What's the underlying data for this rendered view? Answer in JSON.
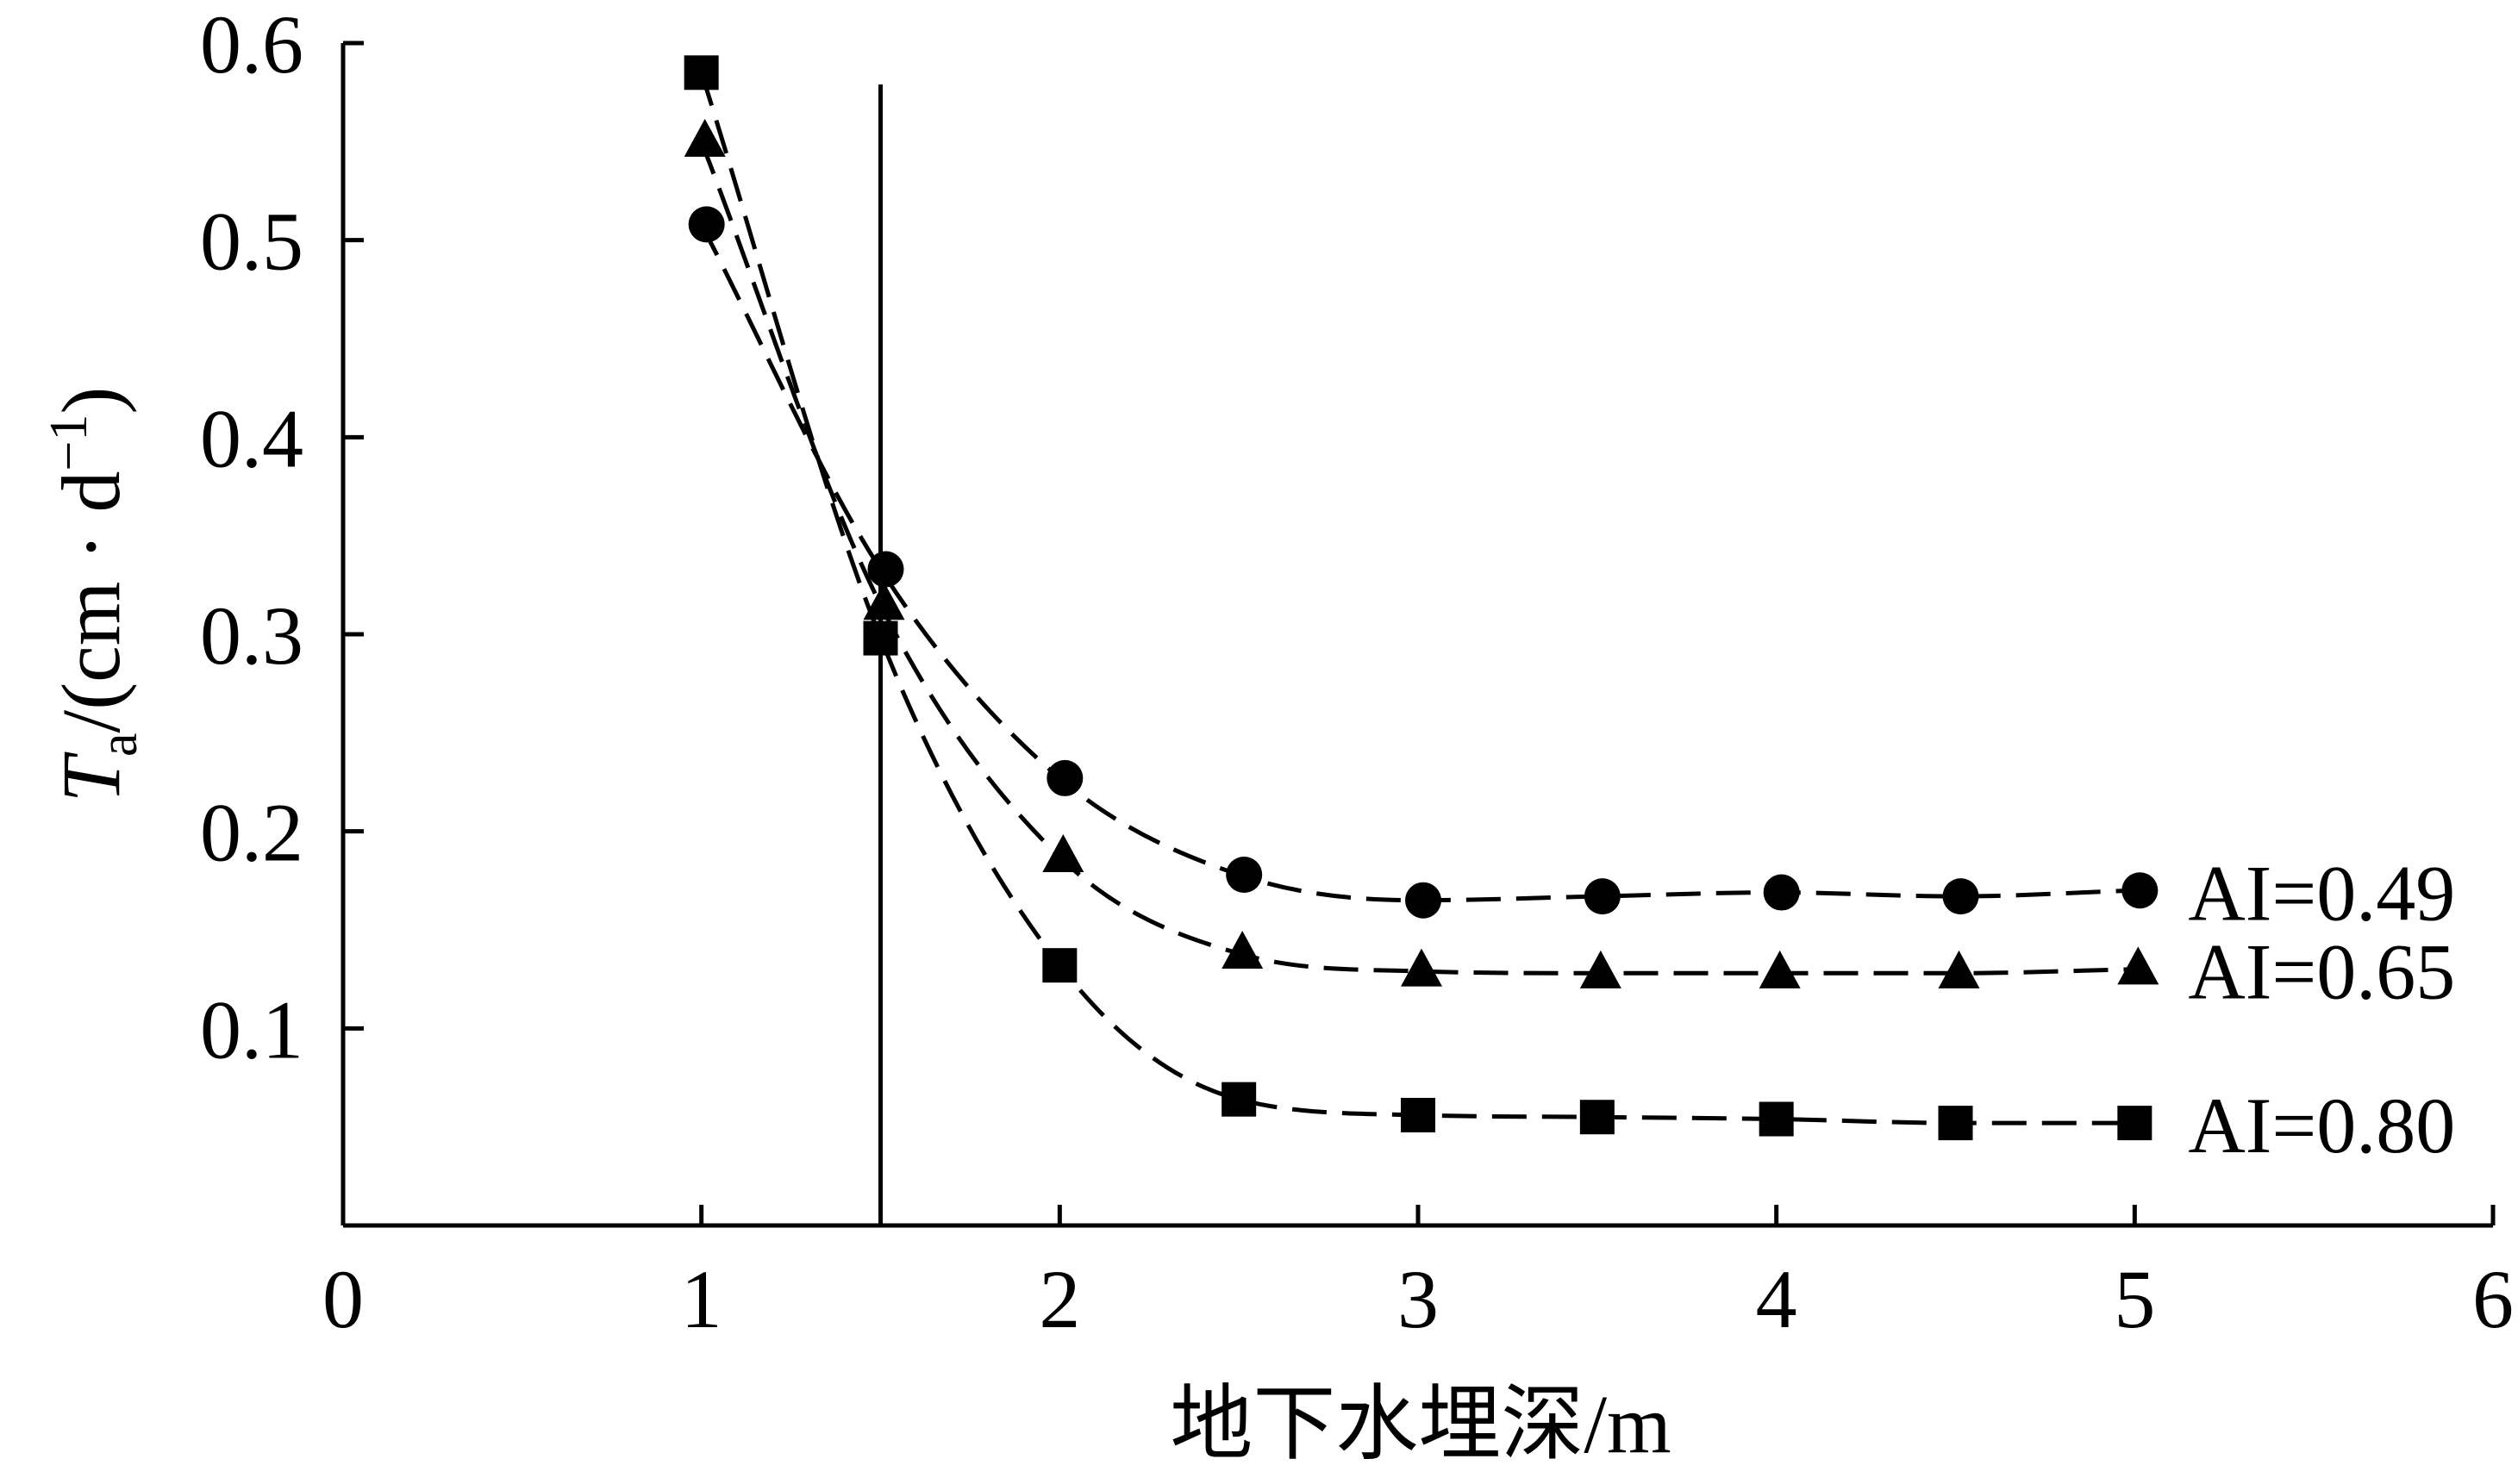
{
  "chart_data": {
    "type": "line",
    "xlabel": "地下水埋深/m",
    "ylabel_main": "T",
    "ylabel_sub": "a",
    "ylabel_unit": "/(cm · d",
    "ylabel_sup": "−1",
    "ylabel_close": ")",
    "xlim": [
      0,
      6
    ],
    "ylim": [
      0,
      0.6
    ],
    "xticks": [
      0,
      1,
      2,
      3,
      4,
      5,
      6
    ],
    "yticks": [
      0.1,
      0.2,
      0.3,
      0.4,
      0.5,
      0.6
    ],
    "xtick_labels": [
      "0",
      "1",
      "2",
      "3",
      "4",
      "5",
      "6"
    ],
    "ytick_labels": [
      "0.1",
      "0.2",
      "0.3",
      "0.4",
      "0.5",
      "0.6"
    ],
    "reference_line_x": 1.5,
    "grid": false,
    "series": [
      {
        "name": "AI=0.49",
        "marker": "circle",
        "x": [
          1.0,
          1.5,
          2.0,
          2.5,
          3.0,
          3.5,
          4.0,
          4.5,
          5.0
        ],
        "y": [
          0.508,
          0.333,
          0.227,
          0.178,
          0.165,
          0.167,
          0.169,
          0.167,
          0.17
        ]
      },
      {
        "name": "AI=0.65",
        "marker": "triangle",
        "x": [
          1.0,
          1.5,
          2.0,
          2.5,
          3.0,
          3.5,
          4.0,
          4.5,
          5.0
        ],
        "y": [
          0.55,
          0.315,
          0.187,
          0.138,
          0.129,
          0.128,
          0.128,
          0.128,
          0.13
        ]
      },
      {
        "name": "AI=0.80",
        "marker": "square",
        "x": [
          1.0,
          1.5,
          2.0,
          2.5,
          3.0,
          3.5,
          4.0,
          4.5,
          5.0
        ],
        "y": [
          0.585,
          0.298,
          0.132,
          0.064,
          0.056,
          0.055,
          0.054,
          0.052,
          0.052
        ]
      }
    ]
  }
}
